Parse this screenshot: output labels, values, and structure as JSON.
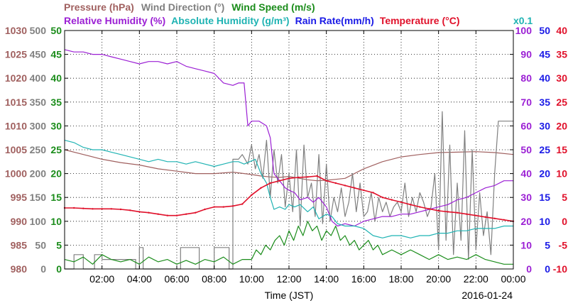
{
  "chart_data": {
    "type": "line",
    "legend": {
      "row1": [
        {
          "label": "Pressure (hPa)",
          "color": "#a0605f"
        },
        {
          "label": "Wind Direction (°)",
          "color": "#808080"
        },
        {
          "label": "Wind Speed (m/s)",
          "color": "#1a8c1a"
        }
      ],
      "row2": [
        {
          "label": "Relative Humidity (%)",
          "color": "#9b1fd4"
        },
        {
          "label": "Absolute Humidity (g/m³)",
          "color": "#1fb3b3"
        },
        {
          "label": "Rain Rate(mm/h)",
          "color": "#1a1ae6"
        },
        {
          "label": "Temperature (°C)",
          "color": "#e0102a"
        }
      ],
      "scale_note": "x0.1"
    },
    "xlabel": "Time (JST)",
    "date": "2016-01-24",
    "x_tick_labels": [
      "02:00",
      "04:00",
      "06:00",
      "08:00",
      "10:00",
      "12:00",
      "14:00",
      "16:00",
      "18:00",
      "20:00",
      "22:00",
      "00:00"
    ],
    "x_ticks_hours": [
      2,
      4,
      6,
      8,
      10,
      12,
      14,
      16,
      18,
      20,
      22,
      24
    ],
    "xlim_hours": [
      0,
      24
    ],
    "grid": true,
    "left_axes": [
      {
        "name": "Pressure (hPa)",
        "color": "#a0605f",
        "range": [
          980,
          1030
        ],
        "ticks": [
          "980",
          "985",
          "990",
          "995",
          "1000",
          "1005",
          "1010",
          "1015",
          "1020",
          "1025",
          "1030"
        ]
      },
      {
        "name": "Wind Direction (°)",
        "color": "#808080",
        "range": [
          0,
          500
        ],
        "ticks": [
          "0",
          "50",
          "100",
          "150",
          "200",
          "250",
          "300",
          "350",
          "400",
          "450",
          "500"
        ]
      },
      {
        "name": "Wind Speed (m/s)",
        "color": "#1a8c1a",
        "range": [
          0,
          50
        ],
        "ticks": [
          "0",
          "5",
          "10",
          "15",
          "20",
          "25",
          "30",
          "35",
          "40",
          "45",
          "50"
        ]
      }
    ],
    "right_axes": [
      {
        "name": "Relative Humidity (%)",
        "color": "#9b1fd4",
        "range": [
          0,
          100
        ],
        "ticks": [
          "0",
          "10",
          "20",
          "30",
          "40",
          "50",
          "60",
          "70",
          "80",
          "90",
          "100"
        ]
      },
      {
        "name": "Rain Rate(mm/h)",
        "color": "#1a1ae6",
        "range": [
          0,
          50
        ],
        "ticks": [
          "0",
          "5",
          "10",
          "15",
          "20",
          "25",
          "30",
          "35",
          "40",
          "45",
          "50"
        ]
      },
      {
        "name": "Temperature (°C)",
        "color": "#e0102a",
        "range": [
          -10,
          40
        ],
        "ticks": [
          "-10",
          "-5",
          "0",
          "5",
          "10",
          "15",
          "20",
          "25",
          "30",
          "35",
          "40"
        ]
      }
    ],
    "series": [
      {
        "name": "Pressure (hPa)",
        "axis": "pressure",
        "color": "#a0605f",
        "x": [
          0,
          1,
          2,
          3,
          4,
          5,
          6,
          7,
          8,
          9,
          10,
          10.5,
          11,
          11.5,
          12,
          13,
          13.5,
          14,
          14.5,
          15,
          16,
          17,
          18,
          19,
          20,
          21,
          22,
          23,
          24
        ],
        "y": [
          1005,
          1004,
          1003,
          1002.3,
          1001.8,
          1001,
          1000.5,
          1000,
          1000,
          1000.3,
          999.8,
          999.5,
          999.3,
          999.2,
          999.4,
          998.7,
          998.5,
          998.6,
          998.8,
          999,
          1001,
          1002.5,
          1003.5,
          1004,
          1004.4,
          1004.5,
          1004.6,
          1004.4,
          1004
        ]
      },
      {
        "name": "Wind Direction (°)",
        "axis": "winddir",
        "color": "#808080",
        "x": [
          0,
          0.5,
          0.5,
          1,
          1,
          1.6,
          1.6,
          2,
          2,
          3.8,
          3.8,
          4.0,
          4.0,
          4.2,
          4.2,
          6.2,
          6.2,
          7.2,
          7.2,
          8.0,
          8.0,
          8.8,
          8.8,
          9.0,
          9.0,
          9.3,
          9.5,
          9.8,
          10.0,
          10.2,
          10.4,
          10.6,
          10.8,
          11.0,
          11.2,
          11.4,
          11.6,
          11.8,
          12.0,
          12.2,
          12.4,
          12.6,
          12.8,
          13.0,
          13.2,
          13.4,
          13.6,
          13.8,
          14.0,
          14.2,
          14.4,
          14.6,
          14.8,
          15.0,
          15.2,
          15.4,
          15.6,
          15.8,
          16.0,
          16.2,
          16.4,
          16.6,
          16.8,
          17.0,
          17.2,
          17.4,
          17.6,
          17.8,
          18.0,
          18.2,
          18.4,
          18.6,
          18.8,
          19.0,
          19.2,
          19.4,
          19.6,
          19.8,
          20.0,
          20.2,
          20.4,
          20.6,
          20.8,
          21.0,
          21.2,
          21.4,
          21.6,
          21.8,
          22.0,
          22.2,
          22.4,
          22.6,
          22.8,
          23.0,
          23.2,
          23.4,
          23.6,
          24
        ],
        "y": [
          0,
          0,
          30,
          30,
          0,
          0,
          30,
          30,
          20,
          20,
          0,
          0,
          45,
          45,
          0,
          0,
          45,
          45,
          0,
          0,
          45,
          45,
          0,
          0,
          230,
          230,
          240,
          220,
          260,
          210,
          240,
          190,
          270,
          150,
          250,
          180,
          240,
          130,
          200,
          120,
          250,
          90,
          260,
          150,
          180,
          110,
          240,
          95,
          220,
          100,
          150,
          120,
          170,
          110,
          140,
          200,
          120,
          180,
          110,
          120,
          160,
          100,
          150,
          120,
          140,
          110,
          130,
          140,
          120,
          180,
          110,
          150,
          120,
          160,
          140,
          110,
          130,
          200,
          40,
          330,
          60,
          260,
          30,
          180,
          60,
          290,
          20,
          250,
          40,
          160,
          70,
          120,
          30,
          200,
          310,
          310,
          310,
          310
        ]
      },
      {
        "name": "Wind Speed (m/s)",
        "axis": "windspeed",
        "color": "#1a8c1a",
        "x": [
          0,
          0.5,
          1,
          1.5,
          2,
          2.5,
          3,
          3.5,
          4,
          4.5,
          5,
          5.5,
          6,
          6.5,
          7,
          7.5,
          8,
          8.5,
          9,
          9.5,
          10,
          10.25,
          10.5,
          10.75,
          11,
          11.25,
          11.5,
          11.75,
          12,
          12.25,
          12.5,
          12.75,
          13,
          13.25,
          13.5,
          13.75,
          14,
          14.25,
          14.5,
          14.75,
          15,
          15.25,
          15.5,
          15.75,
          16,
          16.25,
          16.5,
          16.75,
          17,
          17.5,
          18,
          18.5,
          19,
          19.5,
          20,
          20.5,
          21,
          21.5,
          22,
          22.5,
          23,
          23.5,
          24
        ],
        "y": [
          2,
          1.5,
          2.5,
          1,
          3,
          2,
          1.5,
          2,
          1,
          2.5,
          1.5,
          2,
          1,
          1.8,
          1,
          2,
          1.5,
          2.5,
          1,
          2,
          2,
          4,
          3,
          5,
          4,
          6,
          7,
          5,
          8,
          6,
          9,
          7,
          10,
          8,
          9,
          6,
          8,
          7,
          9,
          6,
          7,
          5,
          6,
          4,
          5,
          6,
          4,
          5,
          3,
          4,
          3,
          4,
          3,
          2,
          3,
          2,
          2.5,
          2,
          3,
          2,
          1.5,
          1,
          1
        ]
      },
      {
        "name": "Relative Humidity (%)",
        "axis": "rh",
        "color": "#9b1fd4",
        "x": [
          0,
          0.5,
          1,
          1.5,
          2,
          2.5,
          3,
          3.5,
          4,
          4.5,
          5,
          5.5,
          6,
          6.5,
          7,
          7.5,
          8,
          8.5,
          9,
          9.3,
          9.6,
          9.8,
          10,
          10.2,
          10.4,
          10.6,
          10.8,
          11,
          11.2,
          11.5,
          11.8,
          12,
          12.3,
          12.6,
          13,
          13.3,
          13.6,
          14,
          14.3,
          14.6,
          15,
          15.5,
          16,
          16.5,
          17,
          17.5,
          18,
          18.5,
          19,
          19.5,
          20,
          20.5,
          21,
          21.5,
          22,
          22.5,
          23,
          23.5,
          24
        ],
        "y": [
          92,
          91,
          91,
          90,
          90,
          89,
          88,
          87,
          86,
          87,
          87,
          86,
          87,
          85,
          84,
          83,
          82,
          78,
          77,
          78,
          78,
          60,
          62,
          62,
          62,
          61,
          60,
          55,
          40,
          37,
          34,
          33,
          32,
          29,
          30,
          28,
          30,
          26,
          20,
          18,
          19,
          18,
          20,
          21,
          22,
          22,
          23,
          23,
          24,
          25,
          26,
          27,
          29,
          30,
          32,
          34,
          35,
          37,
          37
        ]
      },
      {
        "name": "Absolute Humidity (g/m³)",
        "axis": "ah",
        "color": "#1fb3b3",
        "x": [
          0,
          0.5,
          1,
          1.5,
          2,
          2.5,
          3,
          3.5,
          4,
          4.5,
          5,
          5.5,
          6,
          6.5,
          7,
          7.5,
          8,
          8.5,
          9,
          9.3,
          9.6,
          9.9,
          10.2,
          10.5,
          10.8,
          11,
          11.2,
          11.5,
          11.8,
          12,
          12.3,
          12.6,
          13,
          13.3,
          13.6,
          14,
          14.3,
          14.6,
          15,
          15.5,
          16,
          16.5,
          17,
          17.5,
          18,
          18.5,
          19,
          19.5,
          20,
          20.5,
          21,
          21.5,
          22,
          22.5,
          23,
          23.5,
          24
        ],
        "y": [
          54,
          53,
          51,
          50,
          50,
          49,
          48,
          47,
          46,
          45,
          46,
          45,
          45,
          44,
          45,
          44,
          43,
          44,
          45,
          45,
          44,
          45,
          46,
          40,
          36,
          30,
          25,
          26,
          25,
          27,
          26,
          27,
          24,
          26,
          21,
          23,
          22,
          19,
          18,
          18,
          17,
          14,
          13,
          14,
          14,
          13,
          14,
          14,
          15,
          15,
          16,
          16,
          17,
          17,
          17,
          18,
          18
        ]
      },
      {
        "name": "Temperature (°C)",
        "axis": "temp",
        "color": "#e0102a",
        "x": [
          0,
          0.5,
          1,
          1.5,
          2,
          2.5,
          3,
          3.5,
          4,
          4.5,
          5,
          5.5,
          6,
          6.5,
          7,
          7.5,
          8,
          8.5,
          9,
          9.5,
          10,
          10.5,
          11,
          11.5,
          12,
          12.5,
          13,
          13.5,
          14,
          14.5,
          15,
          15.5,
          16,
          16.5,
          17,
          17.5,
          18,
          18.5,
          19,
          19.5,
          20,
          20.5,
          21,
          21.5,
          22,
          22.5,
          23,
          23.5,
          24
        ],
        "y": [
          2.8,
          2.8,
          2.7,
          2.6,
          2.6,
          2.6,
          2.5,
          2.3,
          2.0,
          1.8,
          1.5,
          1.2,
          1.2,
          1.5,
          1.8,
          2.5,
          3.0,
          3.0,
          3.2,
          3.6,
          5.5,
          7.0,
          8.0,
          8.5,
          9.0,
          9.2,
          9.3,
          9.5,
          8.5,
          8.0,
          7.5,
          7.0,
          6.5,
          6.0,
          5.0,
          4.5,
          4.0,
          3.5,
          3.0,
          2.6,
          2.2,
          2.0,
          1.8,
          1.5,
          1.2,
          0.9,
          0.6,
          0.3,
          0.0
        ]
      }
    ]
  }
}
